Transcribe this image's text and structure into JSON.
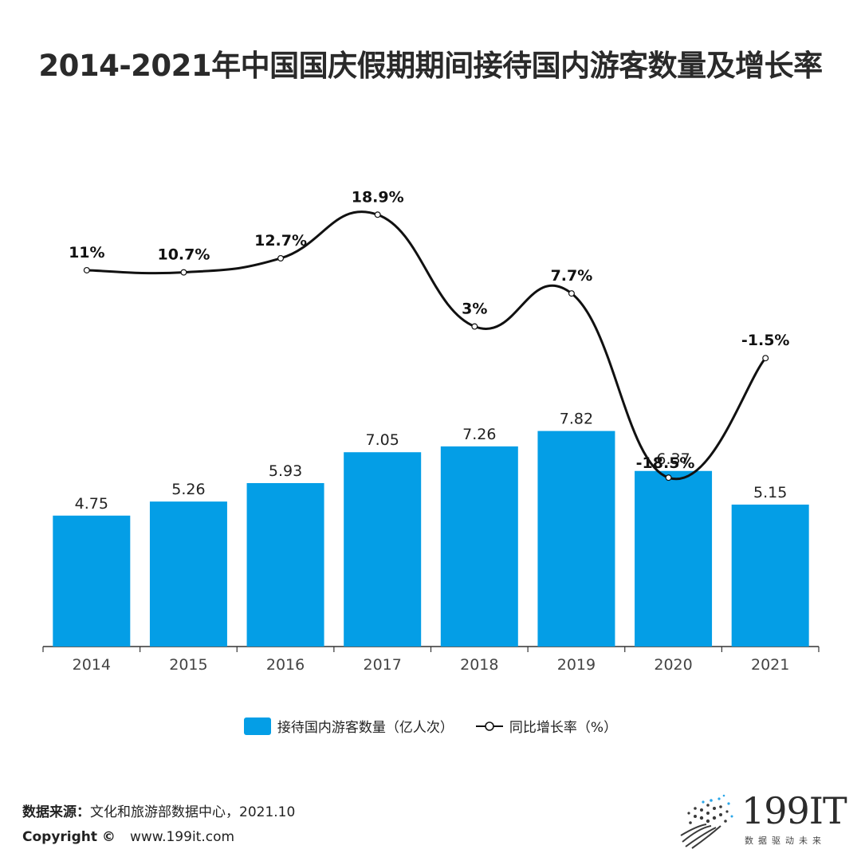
{
  "title": "2014-2021年中国国庆假期期间接待国内游客数量及增长率",
  "chart_data": {
    "type": "bar+line",
    "title": "2014-2021年中国国庆假期期间接待国内游客数量及增长率",
    "categories": [
      "2014",
      "2015",
      "2016",
      "2017",
      "2018",
      "2019",
      "2020",
      "2021"
    ],
    "series": [
      {
        "name": "接待国内游客数量（亿人次）",
        "type": "bar",
        "color": "#049ee6",
        "values": [
          4.75,
          5.26,
          5.93,
          7.05,
          7.26,
          7.82,
          6.37,
          5.15
        ],
        "labels": [
          "4.75",
          "5.26",
          "5.93",
          "7.05",
          "7.26",
          "7.82",
          "6.37",
          "5.15"
        ]
      },
      {
        "name": "同比增长率（%）",
        "type": "line",
        "color": "#111111",
        "values": [
          11,
          10.7,
          12.7,
          18.9,
          3,
          7.7,
          -18.5,
          -1.5
        ],
        "labels": [
          "11%",
          "10.7%",
          "12.7%",
          "18.9%",
          "3%",
          "7.7%",
          "-18.5%",
          "-1.5%"
        ]
      }
    ],
    "bar_ylim": [
      0,
      9.5
    ],
    "line_ylim": [
      -25,
      35
    ],
    "xlabel": "",
    "ylabel": "",
    "grid": false,
    "legend_position": "bottom-center"
  },
  "legend": {
    "bar_label": "接待国内游客数量（亿人次）",
    "line_label": "同比增长率（%）"
  },
  "footer": {
    "source_label": "数据来源：",
    "source_text": "文化和旅游部数据中心，2021.10",
    "copyright_label": "Copyright ©",
    "website": "www.199it.com"
  },
  "logo": {
    "name": "199IT",
    "tagline": "数据驱动未来"
  }
}
